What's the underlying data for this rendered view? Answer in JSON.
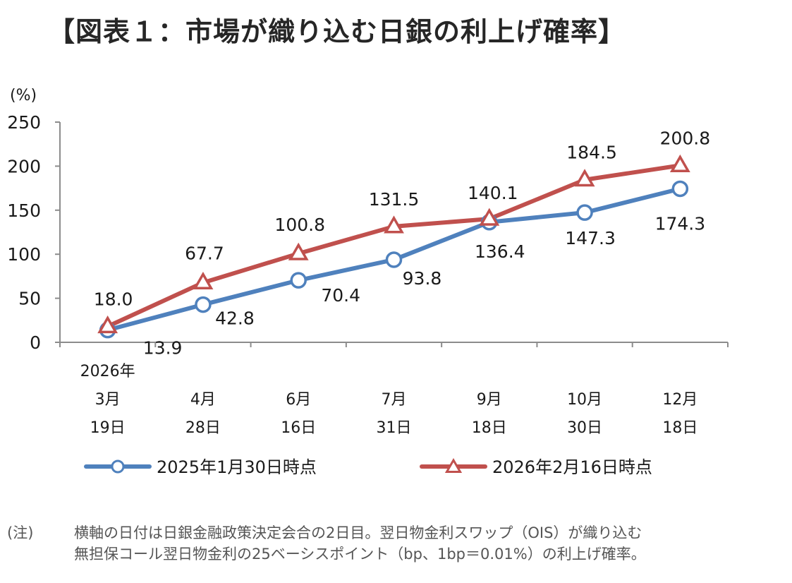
{
  "title": "【図表１：市場が織り込む日銀の利上げ確率】",
  "chart_data": {
    "type": "line",
    "ylabel": "(%)",
    "ylim": [
      0,
      250
    ],
    "yticks": [
      "0",
      "50",
      "100",
      "150",
      "200",
      "250"
    ],
    "ytick_values": [
      0,
      50,
      100,
      150,
      200,
      250
    ],
    "year_label": "2026年",
    "categories": [
      {
        "month": "3月",
        "day": "19日"
      },
      {
        "month": "4月",
        "day": "28日"
      },
      {
        "month": "6月",
        "day": "16日"
      },
      {
        "month": "7月",
        "day": "31日"
      },
      {
        "month": "9月",
        "day": "18日"
      },
      {
        "month": "10月",
        "day": "30日"
      },
      {
        "month": "12月",
        "day": "18日"
      }
    ],
    "series": [
      {
        "name": "2025年1月30日時点",
        "color": "#4F81BD",
        "marker": "circle",
        "values": [
          13.9,
          42.8,
          70.4,
          93.8,
          136.4,
          147.3,
          174.3
        ],
        "labels": [
          "13.9",
          "42.8",
          "70.4",
          "93.8",
          "136.4",
          "147.3",
          "174.3"
        ]
      },
      {
        "name": "2026年2月16日時点",
        "color": "#C0504D",
        "marker": "triangle",
        "values": [
          18.0,
          67.7,
          100.8,
          131.5,
          140.1,
          184.5,
          200.8
        ],
        "labels": [
          "18.0",
          "67.7",
          "100.8",
          "131.5",
          "140.1",
          "184.5",
          "200.8"
        ]
      }
    ],
    "legend": "bottom"
  },
  "note": {
    "label": "(注)",
    "lines": [
      "横軸の日付は日銀金融政策決定会合の2日目。翌日物金利スワップ（OIS）が織り込む",
      "無担保コール翌日物金利の25ベーシスポイント（bp、1bp＝0.01%）の利上げ確率。"
    ]
  }
}
